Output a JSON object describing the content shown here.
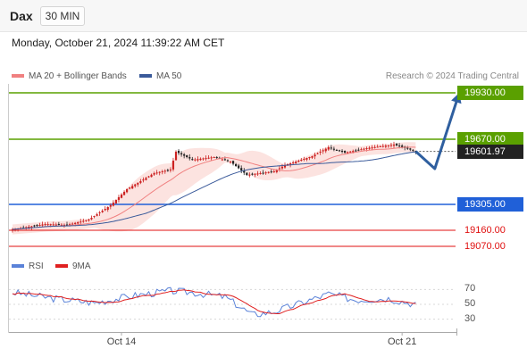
{
  "header": {
    "ticker": "Dax",
    "timeframe": "30 MIN",
    "timestamp": "Monday, October 21, 2024 11:39:22 AM CET",
    "credit": "Research © 2024 Trading Central"
  },
  "legend": {
    "ma20": "MA 20 + Bollinger Bands",
    "ma50": "MA 50",
    "rsi": "RSI",
    "rsi_ma": "9MA"
  },
  "colors": {
    "ma20": "#f08080",
    "bollinger_fill": "#fbd9d6",
    "ma50": "#3a5a9a",
    "resistance": "#5aa000",
    "support": "#2060d8",
    "target": "#e01010",
    "current": "#222222",
    "projection": "#2f5f9f",
    "candle_up": "#cc2222",
    "candle_down": "#222222",
    "rsi": "#5a82d8",
    "rsi_ma": "#e02020"
  },
  "price_levels": [
    {
      "label": "19930.00",
      "value": 19930,
      "kind": "resistance"
    },
    {
      "label": "19670.00",
      "value": 19670,
      "kind": "resistance"
    },
    {
      "label": "19601.97",
      "value": 19601.97,
      "kind": "current"
    },
    {
      "label": "19305.00",
      "value": 19305,
      "kind": "support"
    },
    {
      "label": "19160.00",
      "value": 19160,
      "kind": "target"
    },
    {
      "label": "19070.00",
      "value": 19070,
      "kind": "target"
    }
  ],
  "chart_data": {
    "type": "candlestick",
    "y_range": [
      19060,
      19980
    ],
    "x_ticks": [
      {
        "label": "Oct 14",
        "index": 40
      },
      {
        "label": "Oct 21",
        "index": 143
      }
    ],
    "anchors": [
      {
        "index": 0,
        "close": 19165
      },
      {
        "index": 12,
        "close": 19195
      },
      {
        "index": 20,
        "close": 19190
      },
      {
        "index": 28,
        "close": 19220
      },
      {
        "index": 36,
        "close": 19300
      },
      {
        "index": 42,
        "close": 19390
      },
      {
        "index": 52,
        "close": 19480
      },
      {
        "index": 58,
        "close": 19500
      },
      {
        "index": 60,
        "close": 19600
      },
      {
        "index": 66,
        "close": 19555
      },
      {
        "index": 74,
        "close": 19570
      },
      {
        "index": 80,
        "close": 19545
      },
      {
        "index": 86,
        "close": 19470
      },
      {
        "index": 96,
        "close": 19490
      },
      {
        "index": 100,
        "close": 19525
      },
      {
        "index": 110,
        "close": 19575
      },
      {
        "index": 116,
        "close": 19625
      },
      {
        "index": 122,
        "close": 19595
      },
      {
        "index": 130,
        "close": 19620
      },
      {
        "index": 140,
        "close": 19640
      },
      {
        "index": 146,
        "close": 19612
      },
      {
        "index": 148,
        "close": 19602
      }
    ],
    "projection": [
      {
        "index": 148,
        "value": 19601.97
      },
      {
        "index": 155,
        "value": 19505
      },
      {
        "index": 164,
        "value": 19930
      }
    ],
    "rsi": {
      "ticks": [
        70,
        50,
        30
      ],
      "range": [
        20,
        80
      ],
      "anchors": [
        {
          "index": 0,
          "value": 66
        },
        {
          "index": 15,
          "value": 58
        },
        {
          "index": 30,
          "value": 52
        },
        {
          "index": 45,
          "value": 62
        },
        {
          "index": 58,
          "value": 68
        },
        {
          "index": 66,
          "value": 66
        },
        {
          "index": 78,
          "value": 60
        },
        {
          "index": 88,
          "value": 36
        },
        {
          "index": 96,
          "value": 40
        },
        {
          "index": 106,
          "value": 52
        },
        {
          "index": 116,
          "value": 64
        },
        {
          "index": 126,
          "value": 56
        },
        {
          "index": 138,
          "value": 58
        },
        {
          "index": 148,
          "value": 50
        }
      ]
    }
  }
}
